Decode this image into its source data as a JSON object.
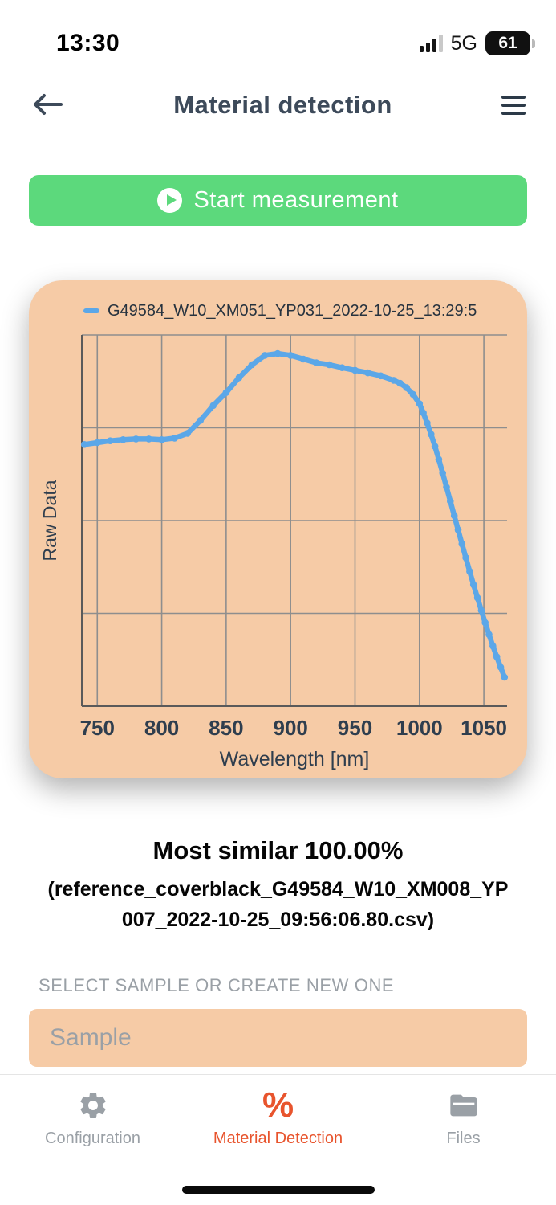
{
  "colors": {
    "green": "#5cd97c",
    "peach": "#f6cba6",
    "blue": "#5ba7e8",
    "orange": "#e8542d"
  },
  "status_bar": {
    "time": "13:30",
    "network": "5G",
    "battery_percent": "61"
  },
  "header": {
    "title": "Material detection"
  },
  "start_button": {
    "label": "Start measurement"
  },
  "chart_data": {
    "type": "line",
    "legend": "G49584_W10_XM051_YP031_2022-10-25_13:29:5",
    "xlabel": "Wavelength [nm]",
    "ylabel": "Raw Data",
    "x_ticks": [
      750,
      800,
      850,
      900,
      950,
      1000,
      1050
    ],
    "xlim": [
      738,
      1068
    ],
    "ylim": [
      0,
      1
    ],
    "grid": true,
    "line_color": "#5ba7e8",
    "background": "#f6cba6",
    "series": [
      {
        "name": "G49584_W10_XM051_YP031_2022-10-25_13:29:5",
        "x": [
          740,
          750,
          760,
          770,
          780,
          790,
          800,
          810,
          820,
          830,
          840,
          850,
          860,
          870,
          880,
          890,
          900,
          910,
          920,
          930,
          940,
          950,
          960,
          970,
          980,
          985,
          990,
          995,
          1000,
          1003,
          1006,
          1009,
          1012,
          1015,
          1018,
          1021,
          1024,
          1027,
          1030,
          1033,
          1036,
          1039,
          1042,
          1045,
          1048,
          1051,
          1054,
          1057,
          1060,
          1063,
          1066
        ],
        "y": [
          0.705,
          0.71,
          0.715,
          0.718,
          0.72,
          0.72,
          0.718,
          0.722,
          0.735,
          0.77,
          0.81,
          0.845,
          0.885,
          0.92,
          0.945,
          0.95,
          0.945,
          0.935,
          0.925,
          0.92,
          0.912,
          0.905,
          0.898,
          0.89,
          0.878,
          0.87,
          0.858,
          0.84,
          0.815,
          0.79,
          0.763,
          0.733,
          0.7,
          0.665,
          0.628,
          0.59,
          0.552,
          0.513,
          0.475,
          0.437,
          0.4,
          0.363,
          0.327,
          0.292,
          0.258,
          0.225,
          0.193,
          0.162,
          0.133,
          0.105,
          0.078
        ]
      }
    ]
  },
  "result": {
    "headline": "Most similar 100.00%",
    "reference_file": "(reference_coverblack_G49584_W10_XM008_YP007_2022-10-25_09:56:06.80.csv)"
  },
  "sample_section": {
    "label": "SELECT SAMPLE OR CREATE NEW ONE",
    "input_placeholder": "Sample"
  },
  "tab_bar": {
    "tabs": [
      {
        "id": "configuration",
        "label": "Configuration",
        "icon": "gear-icon",
        "active": false
      },
      {
        "id": "material-detection",
        "label": "Material Detection",
        "icon": "percent-icon",
        "active": true
      },
      {
        "id": "files",
        "label": "Files",
        "icon": "folder-icon",
        "active": false
      }
    ]
  }
}
